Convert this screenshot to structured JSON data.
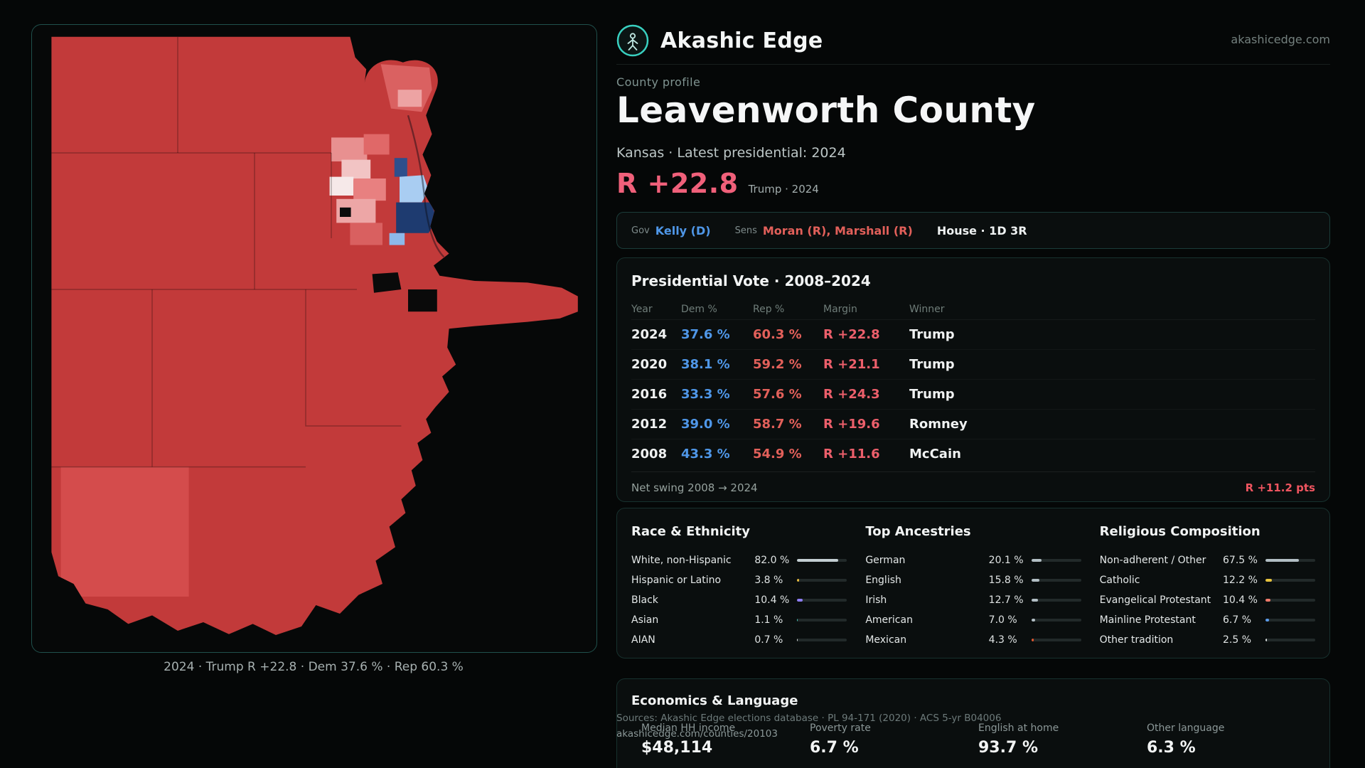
{
  "brand": {
    "name": "Akashic Edge",
    "url": "akashicedge.com"
  },
  "map_panel": {
    "caption": "2024 · Trump R +22.8 · Dem 37.6 % · Rep 60.3 %"
  },
  "profile": {
    "eyebrow": "County profile",
    "title": "Leavenworth County",
    "subtitle": "Kansas · Latest presidential: 2024",
    "margin": "R +22.8",
    "margin_note": "Trump · 2024"
  },
  "officials": {
    "gov_label": "Gov",
    "gov": "Kelly (D)",
    "sens_label": "Sens",
    "sens": "Moran (R), Marshall (R)",
    "house": "House · 1D 3R"
  },
  "presidential": {
    "title": "Presidential Vote · 2008–2024",
    "columns": {
      "year": "Year",
      "dem": "Dem %",
      "rep": "Rep %",
      "margin": "Margin",
      "winner": "Winner"
    },
    "rows": [
      {
        "year": "2024",
        "dem": "37.6 %",
        "rep": "60.3 %",
        "margin": "R +22.8",
        "winner": "Trump"
      },
      {
        "year": "2020",
        "dem": "38.1 %",
        "rep": "59.2 %",
        "margin": "R +21.1",
        "winner": "Trump"
      },
      {
        "year": "2016",
        "dem": "33.3 %",
        "rep": "57.6 %",
        "margin": "R +24.3",
        "winner": "Trump"
      },
      {
        "year": "2012",
        "dem": "39.0 %",
        "rep": "58.7 %",
        "margin": "R +19.6",
        "winner": "Romney"
      },
      {
        "year": "2008",
        "dem": "43.3 %",
        "rep": "54.9 %",
        "margin": "R +11.6",
        "winner": "McCain"
      }
    ],
    "net_swing_label": "Net swing 2008 → 2024",
    "net_swing_value": "R +11.2 pts"
  },
  "demographics": [
    {
      "title": "Race & Ethnicity",
      "rows": [
        {
          "label": "White, non-Hispanic",
          "value": "82.0 %",
          "pct": 82.0,
          "color": "#c3ced2"
        },
        {
          "label": "Hispanic or Latino",
          "value": "3.8 %",
          "pct": 3.8,
          "color": "#e7bb3e"
        },
        {
          "label": "Black",
          "value": "10.4 %",
          "pct": 10.4,
          "color": "#8d7df2"
        },
        {
          "label": "Asian",
          "value": "1.1 %",
          "pct": 1.1,
          "color": "#49c7b8"
        },
        {
          "label": "AIAN",
          "value": "0.7 %",
          "pct": 0.7,
          "color": "#d9dddd"
        }
      ]
    },
    {
      "title": "Top Ancestries",
      "rows": [
        {
          "label": "German",
          "value": "20.1 %",
          "pct": 20.1,
          "color": "#b2bec4"
        },
        {
          "label": "English",
          "value": "15.8 %",
          "pct": 15.8,
          "color": "#b2bec4"
        },
        {
          "label": "Irish",
          "value": "12.7 %",
          "pct": 12.7,
          "color": "#b2bec4"
        },
        {
          "label": "American",
          "value": "7.0 %",
          "pct": 7.0,
          "color": "#b2bec4"
        },
        {
          "label": "Mexican",
          "value": "4.3 %",
          "pct": 4.3,
          "color": "#e0562f"
        }
      ]
    },
    {
      "title": "Religious Composition",
      "rows": [
        {
          "label": "Non-adherent / Other",
          "value": "67.5 %",
          "pct": 67.5,
          "color": "#b2bec4"
        },
        {
          "label": "Catholic",
          "value": "12.2 %",
          "pct": 12.2,
          "color": "#e7c33e"
        },
        {
          "label": "Evangelical Protestant",
          "value": "10.4 %",
          "pct": 10.4,
          "color": "#ef7a6a"
        },
        {
          "label": "Mainline Protestant",
          "value": "6.7 %",
          "pct": 6.7,
          "color": "#5a9ae8"
        },
        {
          "label": "Other tradition",
          "value": "2.5 %",
          "pct": 2.5,
          "color": "#d9dddd"
        }
      ]
    }
  ],
  "economics": {
    "title": "Economics & Language",
    "stats": [
      {
        "label": "Median HH income",
        "value": "$48,114"
      },
      {
        "label": "Poverty rate",
        "value": "6.7 %"
      },
      {
        "label": "English at home",
        "value": "93.7 %"
      },
      {
        "label": "Other language",
        "value": "6.3 %"
      }
    ]
  },
  "footer": {
    "sources": "Sources: Akashic Edge elections database · PL 94-171 (2020) · ACS 5-yr B04006",
    "permalink": "akashicedge.com/counties/20103"
  }
}
